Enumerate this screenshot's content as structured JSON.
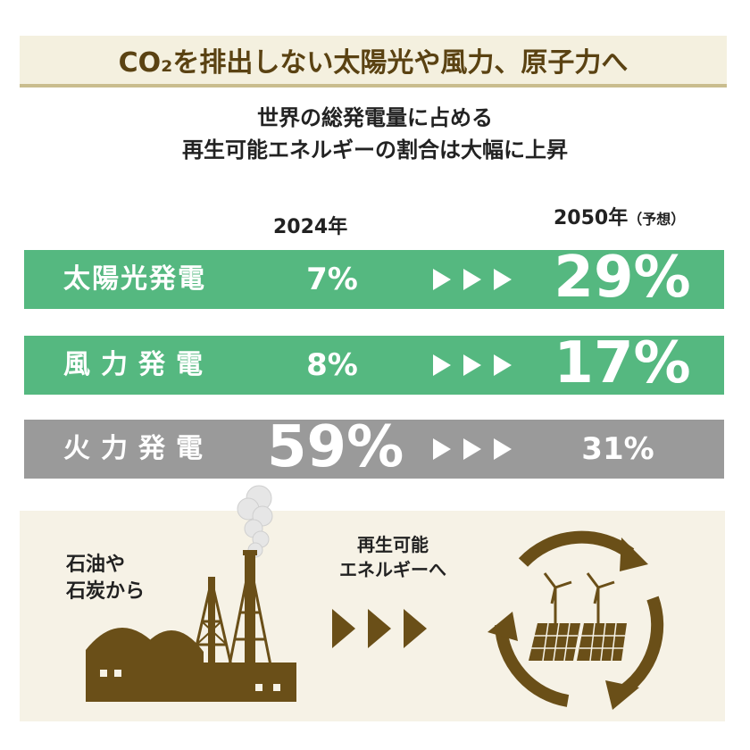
{
  "header": {
    "title": "CO₂を排出しない太陽光や風力、原子力へ"
  },
  "subtitle": {
    "line1": "世界の総発電量に占める",
    "line2": "再生可能エネルギーの割合は大幅に上昇"
  },
  "columns": {
    "year_2024": "2024年",
    "year_2050": "2050年",
    "year_2050_note": "（予想）"
  },
  "rows": [
    {
      "label": "太陽光発電",
      "value_2024": "7%",
      "value_2050": "29%",
      "color": "#55b880"
    },
    {
      "label": "風力発電",
      "value_2024": "8%",
      "value_2050": "17%",
      "color": "#55b880"
    },
    {
      "label": "火力発電",
      "value_2024": "59%",
      "value_2050": "31%",
      "color": "#9a9a9a"
    }
  ],
  "bottom": {
    "fuel_line1": "石油や",
    "fuel_line2": "石炭から",
    "renewable_line1": "再生可能",
    "renewable_line2": "エネルギーへ"
  },
  "colors": {
    "accent_brown": "#6a4f18",
    "green": "#55b880",
    "gray": "#9a9a9a"
  },
  "icons": [
    "factory-icon",
    "smoke-icon",
    "arrows-right-icon",
    "recycle-arrows-icon",
    "wind-turbine-icon",
    "solar-panel-icon"
  ]
}
